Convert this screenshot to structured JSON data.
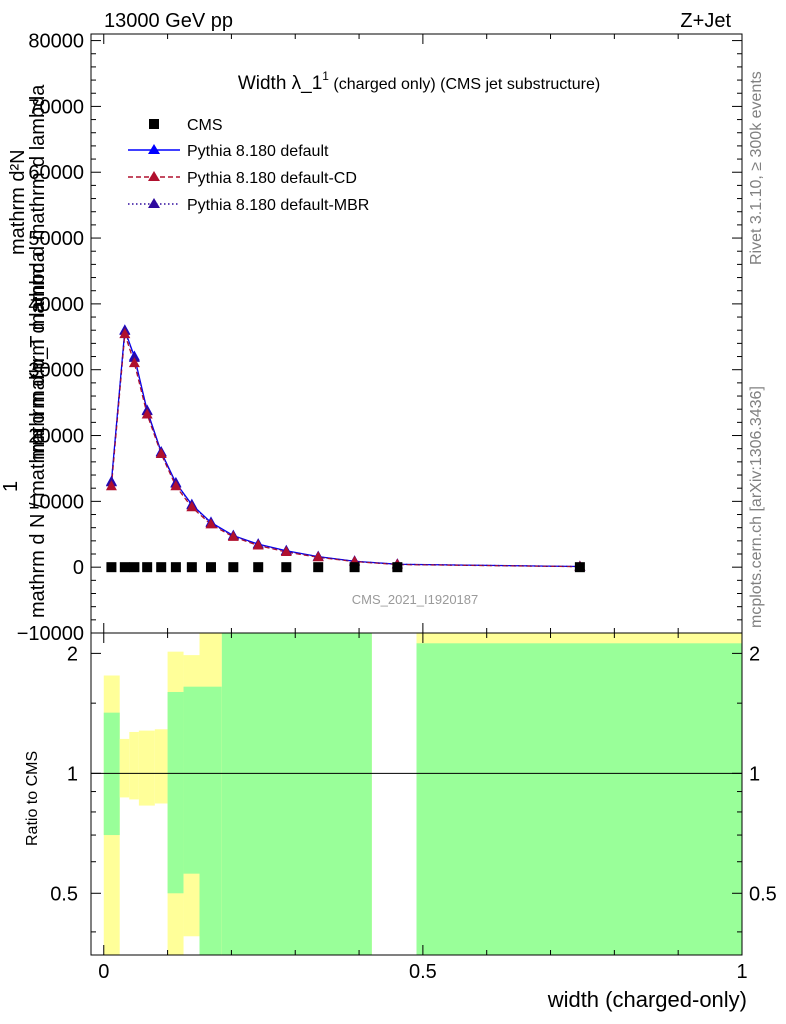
{
  "header": {
    "left": "13000 GeV pp",
    "right": "Z+Jet"
  },
  "side_labels": {
    "rivet": "Rivet 3.1.10, ≥ 300k events",
    "mcplots": "mcplots.cern.ch [arXiv:1306.3436]"
  },
  "watermark": "CMS_2021_I1920187",
  "colors": {
    "cms": "#000000",
    "default": "#0000ff",
    "default_cd": "#b0102e",
    "default_mbr": "#2e0a9e",
    "band_inner": "#99ff99",
    "band_outer": "#ffff99"
  },
  "chart_data": [
    {
      "type": "line",
      "title": {
        "main": "Width λ_1",
        "sup": "1",
        "rest": " (charged only) (CMS jet substructure)"
      },
      "ylabel_lines": [
        "mathrm d²N",
        "mathrm d p_T mathrm d mathrm d lambda",
        "1",
        "mathrm d N / mathrm d mathrm d lambda"
      ],
      "xlim": [
        -0.02,
        1.0
      ],
      "ylim": [
        -10000,
        81000
      ],
      "yticks": [
        -10000,
        0,
        10000,
        20000,
        30000,
        40000,
        50000,
        60000,
        70000,
        80000
      ],
      "ytick_labels": [
        "−10000",
        "0",
        "10000",
        "20000",
        "30000",
        "40000",
        "50000",
        "60000",
        "70000",
        "80000"
      ],
      "legend_position": "top-left",
      "series": [
        {
          "name": "CMS",
          "marker": "square",
          "x": [
            0.012,
            0.033,
            0.048,
            0.068,
            0.09,
            0.113,
            0.138,
            0.168,
            0.203,
            0.242,
            0.286,
            0.336,
            0.393,
            0.46,
            0.746
          ],
          "y": [
            0,
            0,
            0,
            0,
            0,
            0,
            0,
            0,
            0,
            0,
            0,
            0,
            0,
            0,
            0
          ]
        },
        {
          "name": "Pythia 8.180 default",
          "marker": "triangle",
          "line": "solid",
          "x": [
            0.012,
            0.033,
            0.048,
            0.068,
            0.09,
            0.113,
            0.138,
            0.168,
            0.203,
            0.242,
            0.286,
            0.336,
            0.393,
            0.46,
            0.746
          ],
          "y": [
            13000,
            36000,
            32000,
            23800,
            17500,
            12800,
            9500,
            6800,
            4800,
            3500,
            2500,
            1600,
            900,
            450,
            100
          ]
        },
        {
          "name": "Pythia 8.180 default-CD",
          "marker": "triangle",
          "line": "dashed",
          "x": [
            0.012,
            0.033,
            0.048,
            0.068,
            0.09,
            0.113,
            0.138,
            0.168,
            0.203,
            0.242,
            0.286,
            0.336,
            0.393,
            0.46,
            0.746
          ],
          "y": [
            12300,
            35400,
            31000,
            23200,
            17200,
            12300,
            9100,
            6500,
            4600,
            3300,
            2300,
            1500,
            850,
            400,
            80
          ]
        },
        {
          "name": "Pythia 8.180 default-MBR",
          "marker": "triangle",
          "line": "dotted",
          "x": [
            0.012,
            0.033,
            0.048,
            0.068,
            0.09,
            0.113,
            0.138,
            0.168,
            0.203,
            0.242,
            0.286,
            0.336,
            0.393,
            0.46,
            0.746
          ],
          "y": [
            12900,
            35900,
            31800,
            23700,
            17400,
            12700,
            9400,
            6700,
            4750,
            3450,
            2450,
            1580,
            880,
            430,
            90
          ]
        }
      ]
    },
    {
      "type": "area",
      "xlabel": "width (charged-only)",
      "ylabel": "Ratio to CMS",
      "xlim": [
        -0.02,
        1.0
      ],
      "ylim": [
        0.35,
        2.25
      ],
      "xticks": [
        0,
        0.5,
        1
      ],
      "xtick_labels": [
        "0",
        "0.5",
        "1"
      ],
      "yticks": [
        0.5,
        1,
        2
      ],
      "ytick_labels": [
        "0.5",
        "1",
        "2"
      ],
      "reference_line": 1,
      "bands": [
        {
          "x0": 0.0,
          "x1": 0.025,
          "outer": [
            0.35,
            1.76
          ],
          "inner": [
            0.7,
            1.42
          ]
        },
        {
          "x0": 0.025,
          "x1": 0.04,
          "outer": [
            0.87,
            1.22
          ],
          "inner": [
            1.0,
            1.0
          ]
        },
        {
          "x0": 0.04,
          "x1": 0.055,
          "outer": [
            0.86,
            1.27
          ],
          "inner": [
            1.0,
            1.0
          ]
        },
        {
          "x0": 0.055,
          "x1": 0.08,
          "outer": [
            0.83,
            1.28
          ],
          "inner": [
            1.0,
            1.0
          ]
        },
        {
          "x0": 0.08,
          "x1": 0.1,
          "outer": [
            0.84,
            1.29
          ],
          "inner": [
            1.0,
            1.0
          ]
        },
        {
          "x0": 0.1,
          "x1": 0.125,
          "outer": [
            0.35,
            2.02
          ],
          "inner": [
            0.5,
            1.6
          ]
        },
        {
          "x0": 0.125,
          "x1": 0.15,
          "outer": [
            0.39,
            1.98
          ],
          "inner": [
            0.56,
            1.65
          ]
        },
        {
          "x0": 0.15,
          "x1": 0.185,
          "outer": [
            0.35,
            2.27
          ],
          "inner": [
            0.35,
            1.65
          ]
        },
        {
          "x0": 0.185,
          "x1": 0.42,
          "outer": [
            0.35,
            2.27
          ],
          "inner": [
            0.35,
            2.27
          ]
        },
        {
          "x0": 0.49,
          "x1": 1.0,
          "outer": [
            0.35,
            2.27
          ],
          "inner": [
            0.35,
            2.12
          ]
        }
      ]
    }
  ]
}
